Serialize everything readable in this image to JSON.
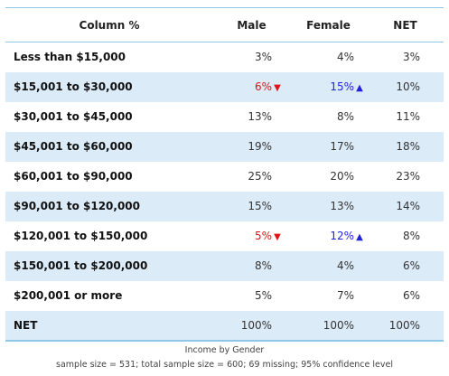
{
  "table": {
    "headers": [
      "Column %",
      "Male",
      "Female",
      "NET"
    ],
    "rows": [
      {
        "label": "Less than $15,000",
        "male": "3%",
        "female": "4%",
        "net": "3%"
      },
      {
        "label": "$15,001 to $30,000",
        "male": "6%",
        "female": "15%",
        "net": "10%",
        "male_sig": "down",
        "female_sig": "up"
      },
      {
        "label": "$30,001 to $45,000",
        "male": "13%",
        "female": "8%",
        "net": "11%"
      },
      {
        "label": "$45,001 to $60,000",
        "male": "19%",
        "female": "17%",
        "net": "18%"
      },
      {
        "label": "$60,001 to $90,000",
        "male": "25%",
        "female": "20%",
        "net": "23%"
      },
      {
        "label": "$90,001 to $120,000",
        "male": "15%",
        "female": "13%",
        "net": "14%"
      },
      {
        "label": "$120,001 to $150,000",
        "male": "5%",
        "female": "12%",
        "net": "8%",
        "male_sig": "down",
        "female_sig": "up"
      },
      {
        "label": "$150,001 to $200,000",
        "male": "8%",
        "female": "4%",
        "net": "6%"
      },
      {
        "label": "$200,001 or more",
        "male": "5%",
        "female": "7%",
        "net": "6%"
      },
      {
        "label": "NET",
        "male": "100%",
        "female": "100%",
        "net": "100%"
      }
    ]
  },
  "footer": {
    "title": "Income by Gender",
    "note": "sample size = 531; total sample size = 600; 69 missing; 95% confidence level"
  },
  "colors": {
    "header_rule": "#8fc7e6",
    "band": "#dcebf8",
    "sig_down": "#e0121a",
    "sig_up": "#2222dd"
  },
  "icons": {
    "down": "arrow-down-icon",
    "up": "arrow-up-icon"
  }
}
